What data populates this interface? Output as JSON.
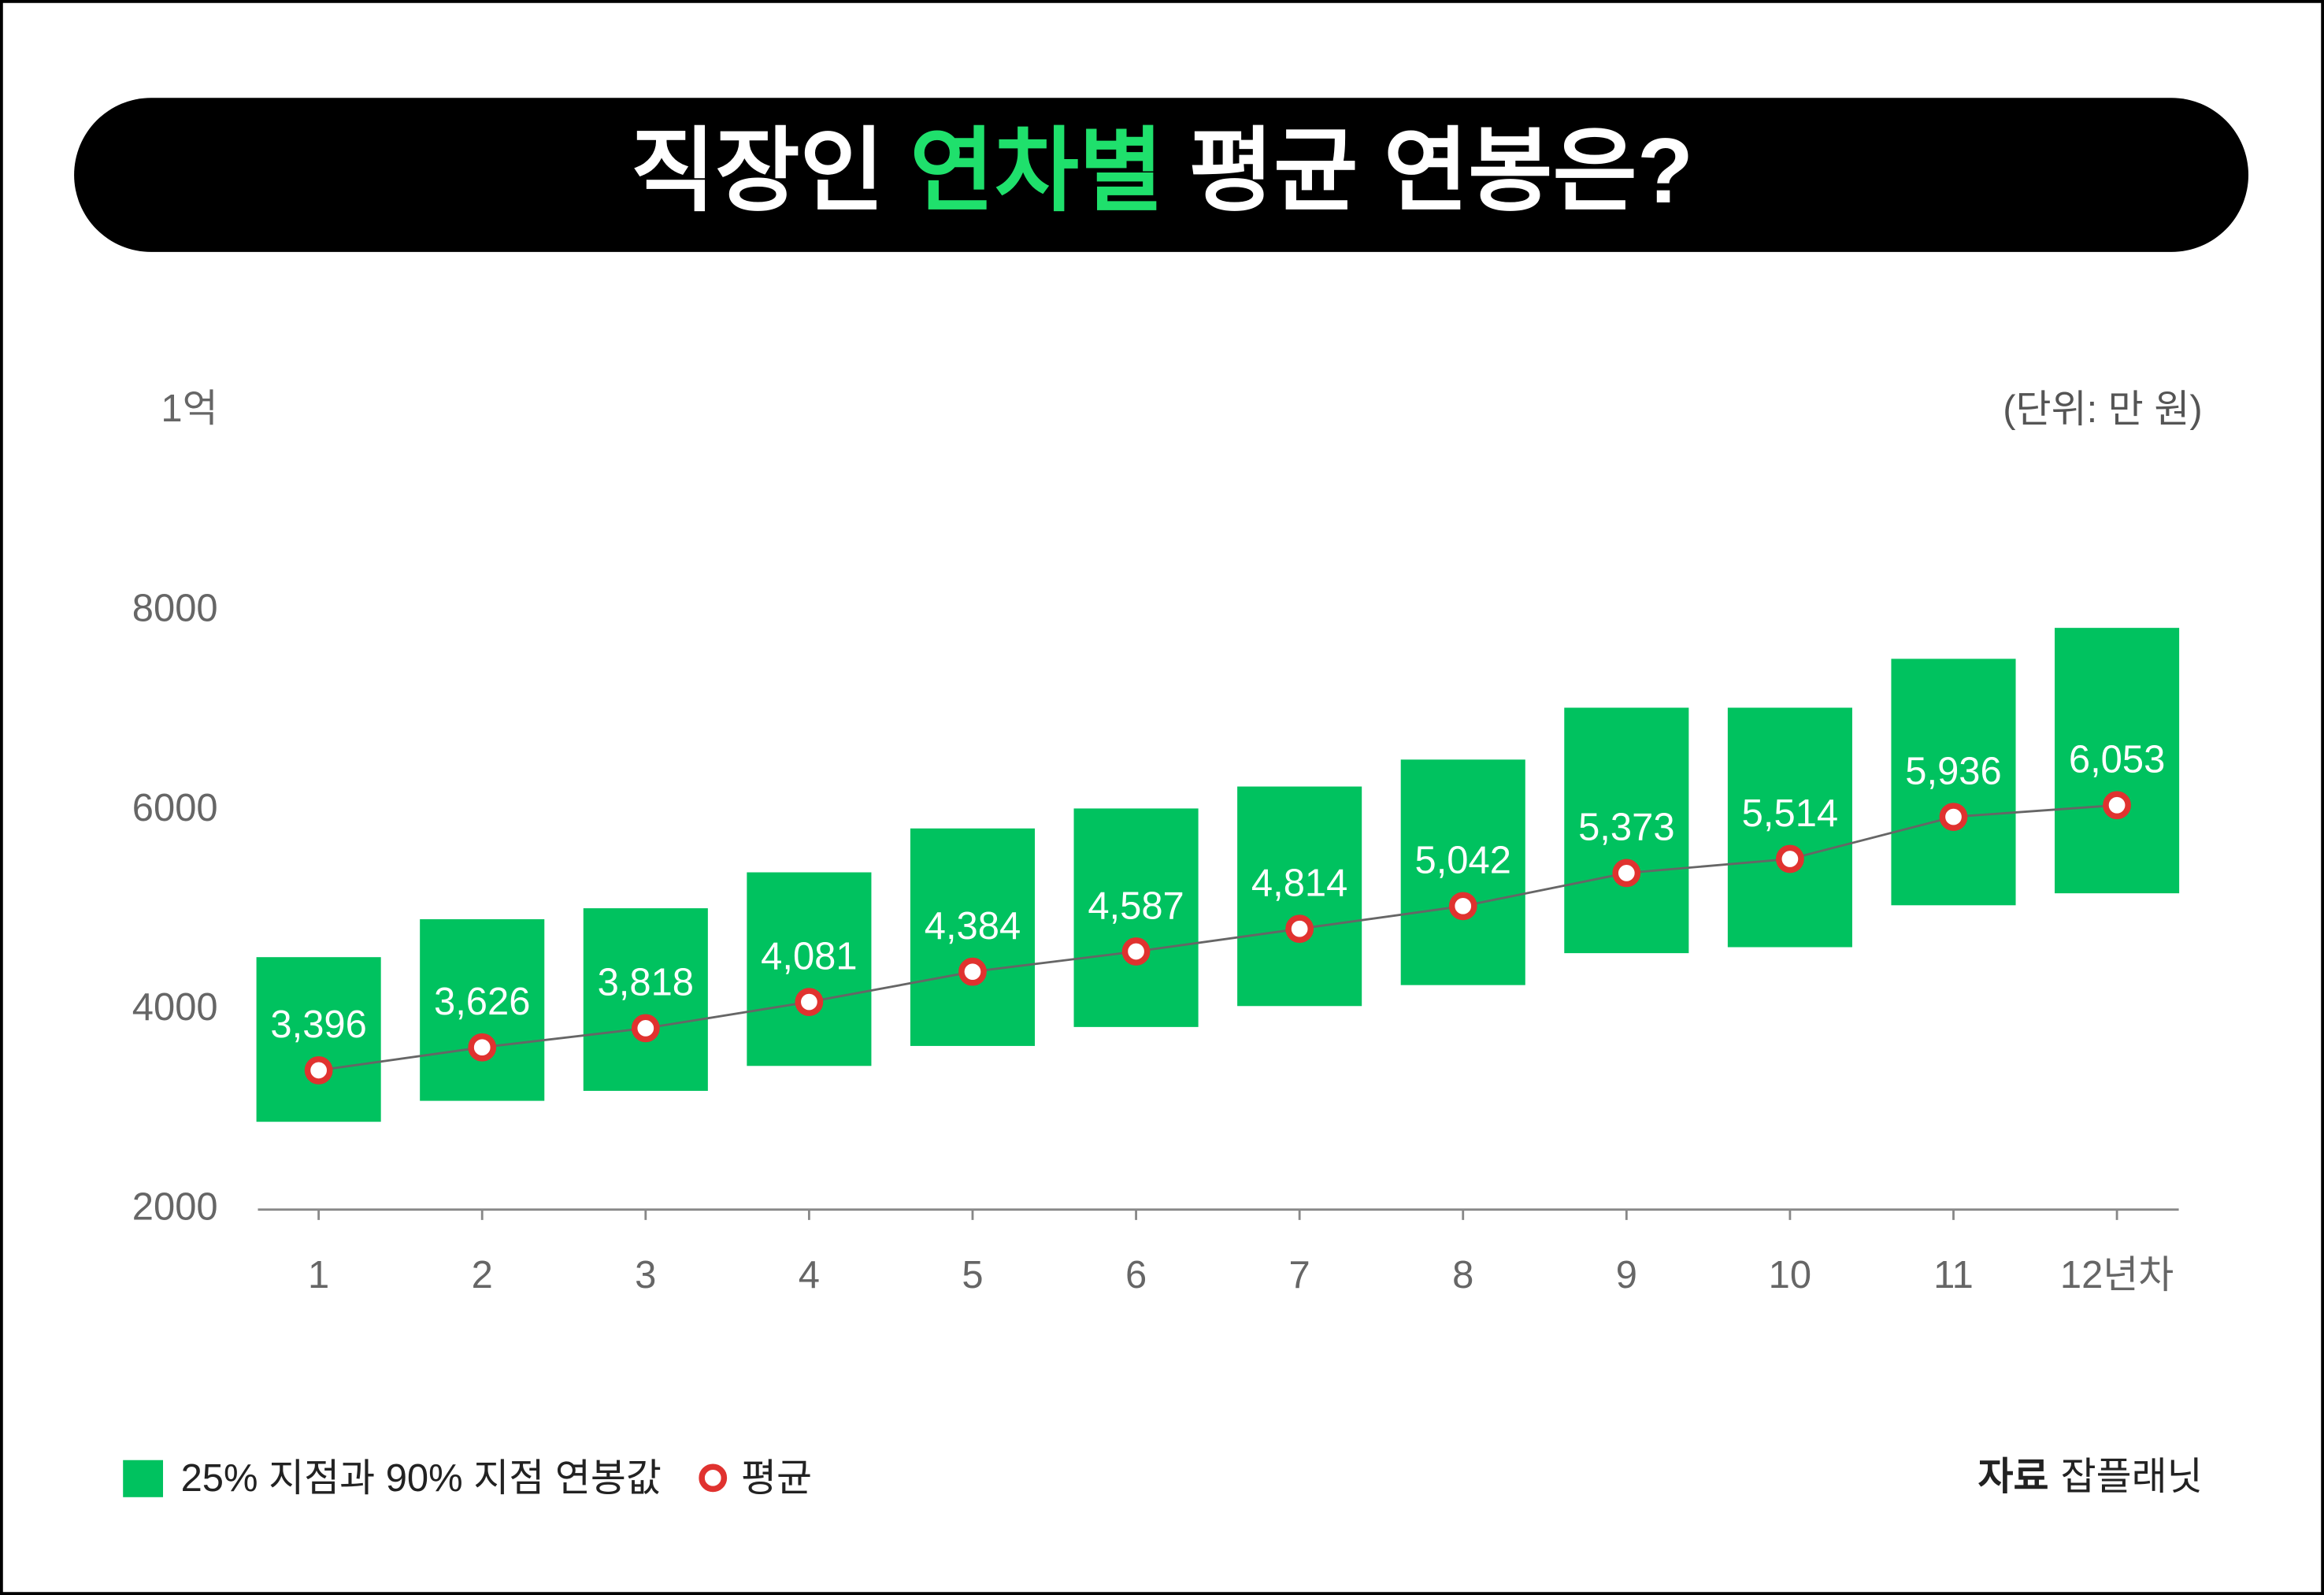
{
  "chart_data": {
    "type": "range_bar",
    "title": [
      "직장인 ",
      "연차별",
      " 평균 연봉은?"
    ],
    "unit": "(단위: 만 원)",
    "categories": [
      "1",
      "2",
      "3",
      "4",
      "5",
      "6",
      "7",
      "8",
      "9",
      "10",
      "11",
      "12년차"
    ],
    "ylim": [
      2000,
      10000
    ],
    "yticks": [
      2000,
      4000,
      6000,
      8000,
      {
        "value": 10000,
        "label": "1억"
      }
    ],
    "series": [
      {
        "name": "25% 지점과 90% 지점 연봉값",
        "color": "#00c25f",
        "low": [
          2880,
          3090,
          3190,
          3440,
          3640,
          3830,
          4040,
          4250,
          4570,
          4630,
          5050,
          5170
        ],
        "high": [
          4530,
          4910,
          5020,
          5380,
          5820,
          6020,
          6240,
          6510,
          7030,
          7030,
          7520,
          7830
        ]
      },
      {
        "name": "평균",
        "color": "#e0322f",
        "values": [
          3396,
          3626,
          3818,
          4081,
          4384,
          4587,
          4814,
          5042,
          5373,
          5514,
          5936,
          6053
        ],
        "value_labels": [
          "3,396",
          "3,626",
          "3,818",
          "4,081",
          "4,384",
          "4,587",
          "4,814",
          "5,042",
          "5,373",
          "5,514",
          "5,936",
          "6,053"
        ]
      }
    ],
    "source_label": "자료",
    "source": "잡플래닛"
  }
}
